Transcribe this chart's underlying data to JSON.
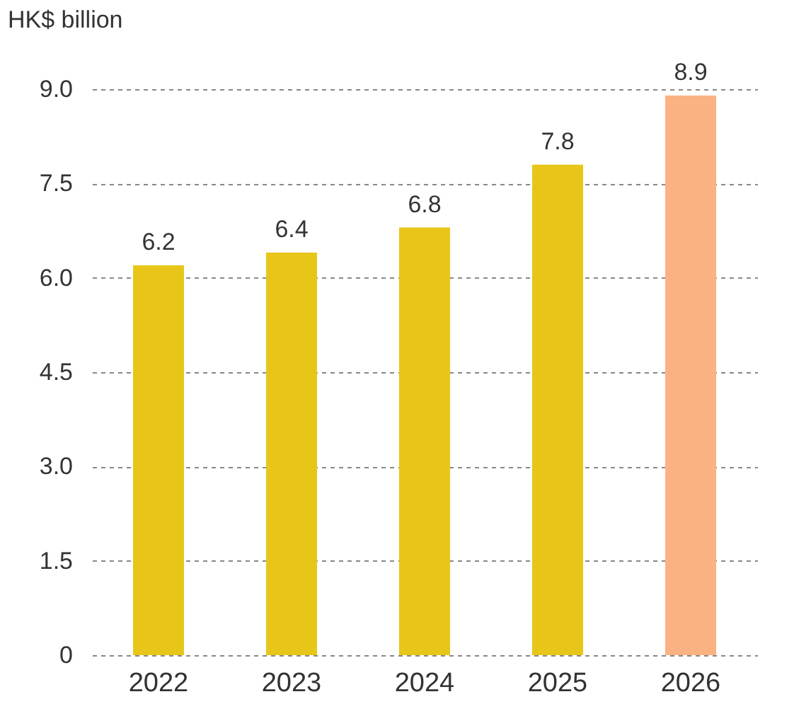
{
  "chart_data": {
    "type": "bar",
    "ylabel": "HK$ billion",
    "categories": [
      "2022",
      "2023",
      "2024",
      "2025",
      "2026"
    ],
    "values": [
      6.2,
      6.4,
      6.8,
      7.8,
      8.9
    ],
    "colors": [
      "#e8c619",
      "#e8c619",
      "#e8c619",
      "#e8c619",
      "#fbb282"
    ],
    "ylim": [
      0,
      9
    ],
    "yticks": [
      0,
      1.5,
      {
        "value": 3,
        "label": "3.0"
      },
      4.5,
      {
        "value": 6,
        "label": "6.0"
      },
      7.5,
      {
        "value": 9,
        "label": "9.0"
      }
    ],
    "grid": "y",
    "data_labels": true
  }
}
